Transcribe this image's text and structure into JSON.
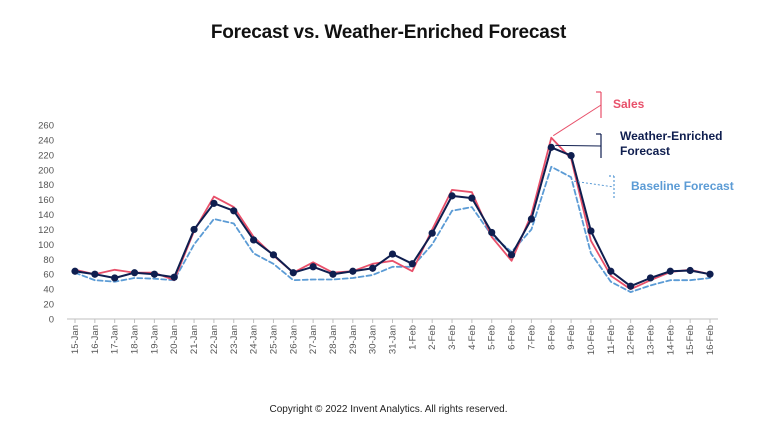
{
  "header": {
    "title": "Forecast vs. Weather-Enriched Forecast"
  },
  "footer": {
    "copyright": "Copyright © 2022 Invent Analytics. All rights reserved."
  },
  "colors": {
    "sales": "#e8506a",
    "weather": "#0f1e4f",
    "baseline": "#5b9bd5",
    "axis": "#bfbfbf",
    "tick_text": "#555555"
  },
  "chart_data": {
    "type": "line",
    "title": "Forecast vs. Weather-Enriched Forecast",
    "xlabel": "",
    "ylabel": "",
    "ylim": [
      0,
      260
    ],
    "yticks": [
      0,
      20,
      40,
      60,
      80,
      100,
      120,
      140,
      160,
      180,
      200,
      220,
      240,
      260
    ],
    "grid": false,
    "legend_position": "right",
    "categories": [
      "15-Jan",
      "16-Jan",
      "17-Jan",
      "18-Jan",
      "19-Jan",
      "20-Jan",
      "21-Jan",
      "22-Jan",
      "23-Jan",
      "24-Jan",
      "25-Jan",
      "26-Jan",
      "27-Jan",
      "28-Jan",
      "29-Jan",
      "30-Jan",
      "31-Jan",
      "1-Feb",
      "2-Feb",
      "3-Feb",
      "4-Feb",
      "5-Feb",
      "6-Feb",
      "7-Feb",
      "8-Feb",
      "9-Feb",
      "10-Feb",
      "11-Feb",
      "12-Feb",
      "13-Feb",
      "14-Feb",
      "15-Feb",
      "16-Feb"
    ],
    "series": [
      {
        "name": "Sales",
        "key": "sales",
        "style": "solid",
        "markers": false,
        "values": [
          66,
          60,
          66,
          62,
          62,
          52,
          118,
          164,
          150,
          110,
          85,
          62,
          76,
          62,
          64,
          74,
          78,
          64,
          120,
          173,
          170,
          110,
          78,
          140,
          243,
          215,
          105,
          58,
          40,
          52,
          63,
          66,
          60
        ]
      },
      {
        "name": "Weather-Enriched Forecast",
        "key": "weather",
        "style": "solid",
        "markers": true,
        "values": [
          64,
          60,
          55,
          62,
          60,
          56,
          120,
          155,
          145,
          106,
          86,
          62,
          70,
          60,
          64,
          68,
          87,
          74,
          115,
          165,
          162,
          116,
          86,
          134,
          230,
          219,
          118,
          64,
          44,
          55,
          64,
          65,
          60
        ]
      },
      {
        "name": "Baseline Forecast",
        "key": "baseline",
        "style": "dashed",
        "markers": false,
        "values": [
          62,
          52,
          50,
          55,
          54,
          52,
          100,
          134,
          128,
          88,
          74,
          52,
          53,
          53,
          55,
          59,
          70,
          70,
          100,
          145,
          150,
          112,
          90,
          120,
          204,
          190,
          88,
          50,
          36,
          45,
          52,
          52,
          55
        ]
      }
    ]
  }
}
